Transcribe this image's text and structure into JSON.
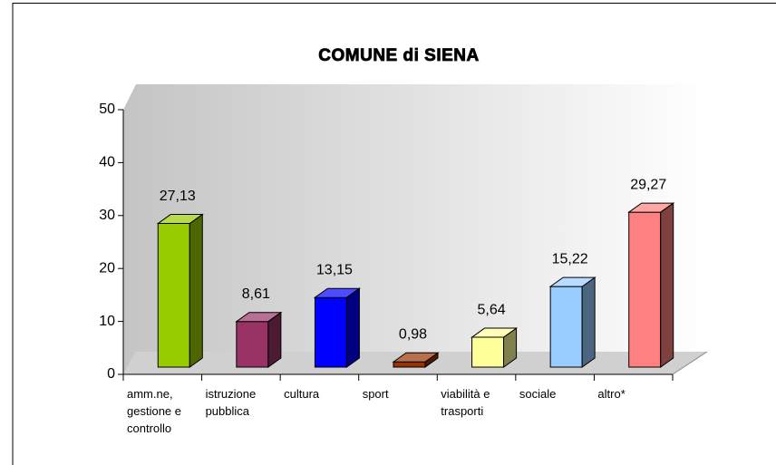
{
  "chart_data": {
    "type": "bar3d",
    "title": "COMUNE di SIENA",
    "categories": [
      "amm.ne,\ngestione e\ncontrollo",
      "istruzione\npubblica",
      "cultura",
      "sport",
      "viabilità e\ntrasporti",
      "sociale",
      "altro*"
    ],
    "values": [
      27.13,
      8.61,
      13.15,
      0.98,
      5.64,
      15.22,
      29.27
    ],
    "value_labels": [
      "27,13",
      "8,61",
      "13,15",
      "0,98",
      "5,64",
      "15,22",
      "29,27"
    ],
    "colors": [
      "#99cc00",
      "#993366",
      "#0000ff",
      "#993300",
      "#ffff99",
      "#99ccff",
      "#ff8080"
    ],
    "ylim": [
      0,
      50
    ],
    "yticks": [
      0,
      10,
      20,
      30,
      40,
      50
    ],
    "grid": false
  }
}
